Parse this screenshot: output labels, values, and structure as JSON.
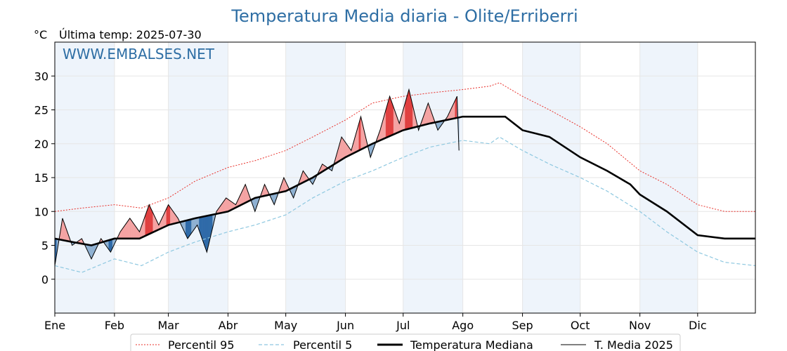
{
  "chart_data": {
    "type": "line",
    "title": "Temperatura Media diaria - Olite/Erriberri",
    "y_unit": "°C",
    "last_update": "Última temp: 2025-07-30",
    "watermark": "WWW.EMBALSES.NET",
    "ylim": [
      -5,
      35
    ],
    "yticks": [
      0,
      5,
      10,
      15,
      20,
      25,
      30
    ],
    "months": [
      "Ene",
      "Feb",
      "Mar",
      "Abr",
      "May",
      "Jun",
      "Jul",
      "Ago",
      "Sep",
      "Oct",
      "Nov",
      "Dic"
    ],
    "grid": true,
    "legend_position": "bottom",
    "colors": {
      "p95": "#e8302a",
      "p5": "#8ec8e0",
      "median": "#000000",
      "current": "#000000",
      "above_fill": "#f4a3a3",
      "above_fill_strong": "#e04040",
      "below_fill": "#8fb1d2",
      "below_fill_strong": "#2f6aa8",
      "month_band": "#eef4fb"
    },
    "series": [
      {
        "name": "Percentil 95",
        "days": [
          1,
          15,
          32,
          46,
          60,
          74,
          91,
          105,
          121,
          135,
          152,
          166,
          182,
          196,
          213,
          227,
          232,
          244,
          258,
          274,
          288,
          305,
          319,
          335,
          349,
          365
        ],
        "values": [
          10,
          10.5,
          11,
          10.5,
          12,
          14.5,
          16.5,
          17.5,
          19,
          21,
          23.5,
          26,
          27,
          27.5,
          28,
          28.5,
          29,
          27,
          25,
          22.5,
          20,
          16,
          14,
          11,
          10,
          10
        ]
      },
      {
        "name": "Percentil 5",
        "days": [
          1,
          15,
          32,
          46,
          60,
          74,
          91,
          105,
          121,
          135,
          152,
          166,
          182,
          196,
          213,
          227,
          232,
          244,
          258,
          274,
          288,
          305,
          319,
          335,
          349,
          365
        ],
        "values": [
          2,
          1,
          3,
          2,
          4,
          5.5,
          7,
          8,
          9.5,
          12,
          14.5,
          16,
          18,
          19.5,
          20.5,
          20,
          21,
          19,
          17,
          15,
          13,
          10,
          7,
          4,
          2.5,
          2
        ]
      },
      {
        "name": "Temperatura Mediana",
        "days": [
          1,
          10,
          20,
          32,
          45,
          60,
          74,
          91,
          105,
          121,
          135,
          152,
          166,
          182,
          196,
          213,
          227,
          235,
          244,
          258,
          274,
          288,
          300,
          305,
          319,
          335,
          349,
          365
        ],
        "values": [
          6,
          5.5,
          5,
          6,
          6,
          8,
          9,
          10,
          12,
          13,
          15,
          18,
          20,
          22,
          23,
          24,
          24,
          24,
          22,
          21,
          18,
          16,
          14,
          12.5,
          10,
          6.5,
          6,
          6
        ]
      },
      {
        "name": "T. Media 2025",
        "days": [
          1,
          5,
          10,
          15,
          20,
          25,
          30,
          35,
          40,
          45,
          50,
          55,
          60,
          65,
          70,
          75,
          80,
          85,
          90,
          95,
          100,
          105,
          110,
          115,
          120,
          125,
          130,
          135,
          140,
          145,
          150,
          155,
          160,
          165,
          170,
          175,
          180,
          185,
          190,
          195,
          200,
          205,
          210,
          211
        ],
        "values": [
          2,
          9,
          5,
          6,
          3,
          6,
          4,
          7,
          9,
          7,
          11,
          8,
          11,
          9,
          6,
          8,
          4,
          10,
          12,
          11,
          14,
          10,
          14,
          11,
          15,
          12,
          16,
          14,
          17,
          16,
          21,
          19,
          24,
          18,
          22,
          27,
          23,
          28,
          22,
          26,
          22,
          24,
          27,
          19
        ]
      }
    ]
  }
}
